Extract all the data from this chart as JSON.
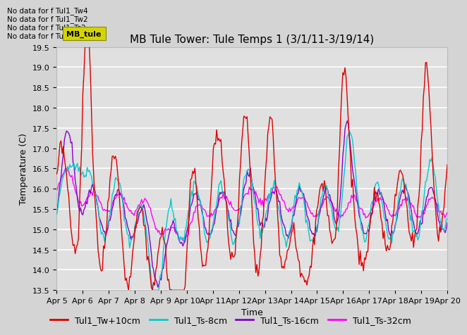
{
  "title": "MB Tule Tower: Tule Temps 1 (3/1/11-3/19/14)",
  "xlabel": "Time",
  "ylabel": "Temperature (C)",
  "ylim": [
    13.5,
    19.5
  ],
  "yticks": [
    13.5,
    14.0,
    14.5,
    15.0,
    15.5,
    16.0,
    16.5,
    17.0,
    17.5,
    18.0,
    18.5,
    19.0,
    19.5
  ],
  "xtick_labels": [
    "Apr 5",
    "Apr 6",
    "Apr 7",
    "Apr 8",
    "Apr 9",
    "Apr 10",
    "Apr 11",
    "Apr 12",
    "Apr 13",
    "Apr 14",
    "Apr 15",
    "Apr 16",
    "Apr 17",
    "Apr 18",
    "Apr 19",
    "Apr 20"
  ],
  "colors": {
    "Tw": "#dd0000",
    "Ts8": "#00cccc",
    "Ts16": "#8800cc",
    "Ts32": "#ff00ff"
  },
  "legend_labels": [
    "Tul1_Tw+10cm",
    "Tul1_Ts-8cm",
    "Tul1_Ts-16cm",
    "Tul1_Ts-32cm"
  ],
  "no_data_texts": [
    "No data for f Tul1_Tw4",
    "No data for f Tul1_Tw2",
    "No data for f Tul1_Ts2",
    "No data for f Tul1_Ts5"
  ],
  "tooltip_text": "MB_tule",
  "fig_facecolor": "#d4d4d4",
  "ax_facecolor": "#e0e0e0",
  "grid_color": "#ffffff",
  "title_fontsize": 11,
  "label_fontsize": 9,
  "tick_fontsize": 8,
  "legend_fontsize": 9
}
